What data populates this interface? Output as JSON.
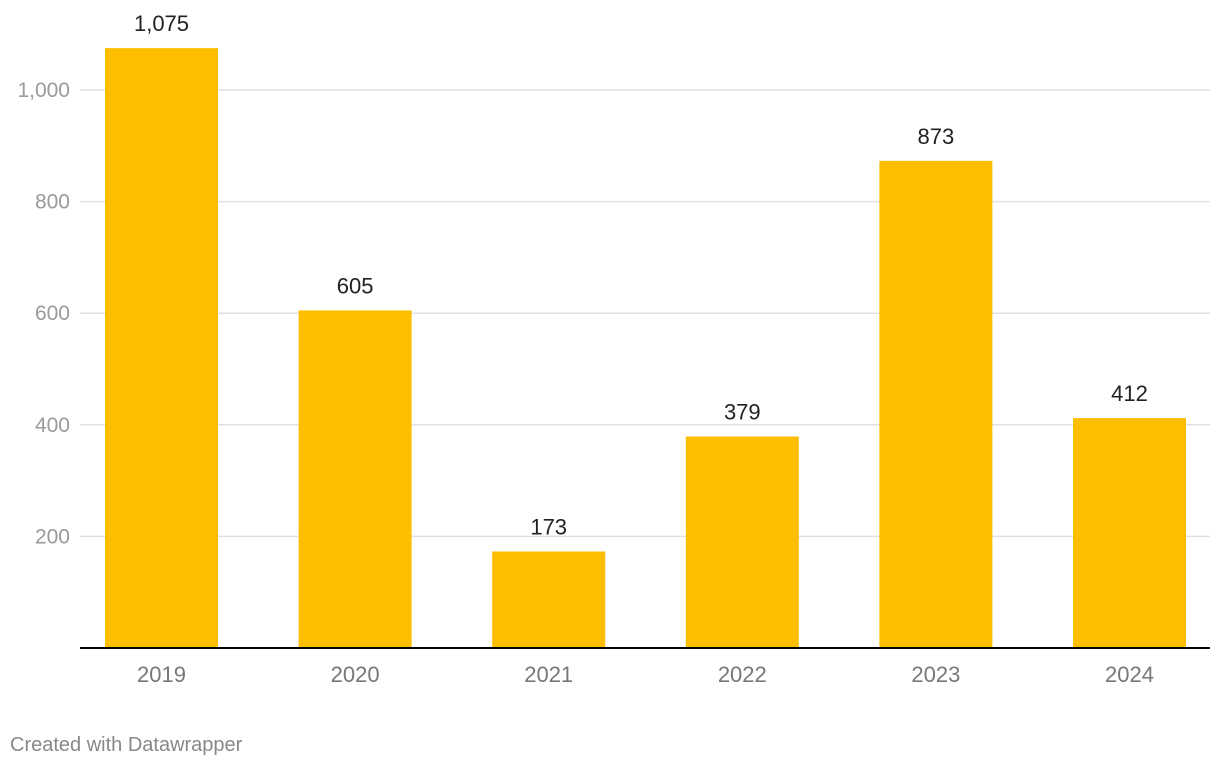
{
  "chart_data": {
    "type": "bar",
    "categories": [
      "2019",
      "2020",
      "2021",
      "2022",
      "2023",
      "2024"
    ],
    "values": [
      1075,
      605,
      173,
      379,
      873,
      412
    ],
    "value_labels": [
      "1,075",
      "605",
      "173",
      "379",
      "873",
      "412"
    ],
    "yticks": [
      200,
      400,
      600,
      800,
      1000
    ],
    "ytick_labels": [
      "200",
      "400",
      "600",
      "800",
      "1,000"
    ],
    "ylim": [
      0,
      1100
    ],
    "grid": true,
    "bar_color": "#fdbe00",
    "grid_color": "#e0e0e0",
    "axis_color": "#000000",
    "tick_label_color": "#9a9a9a",
    "category_label_color": "#777777",
    "value_label_color": "#222222"
  },
  "footer": {
    "credit": "Created with Datawrapper"
  }
}
